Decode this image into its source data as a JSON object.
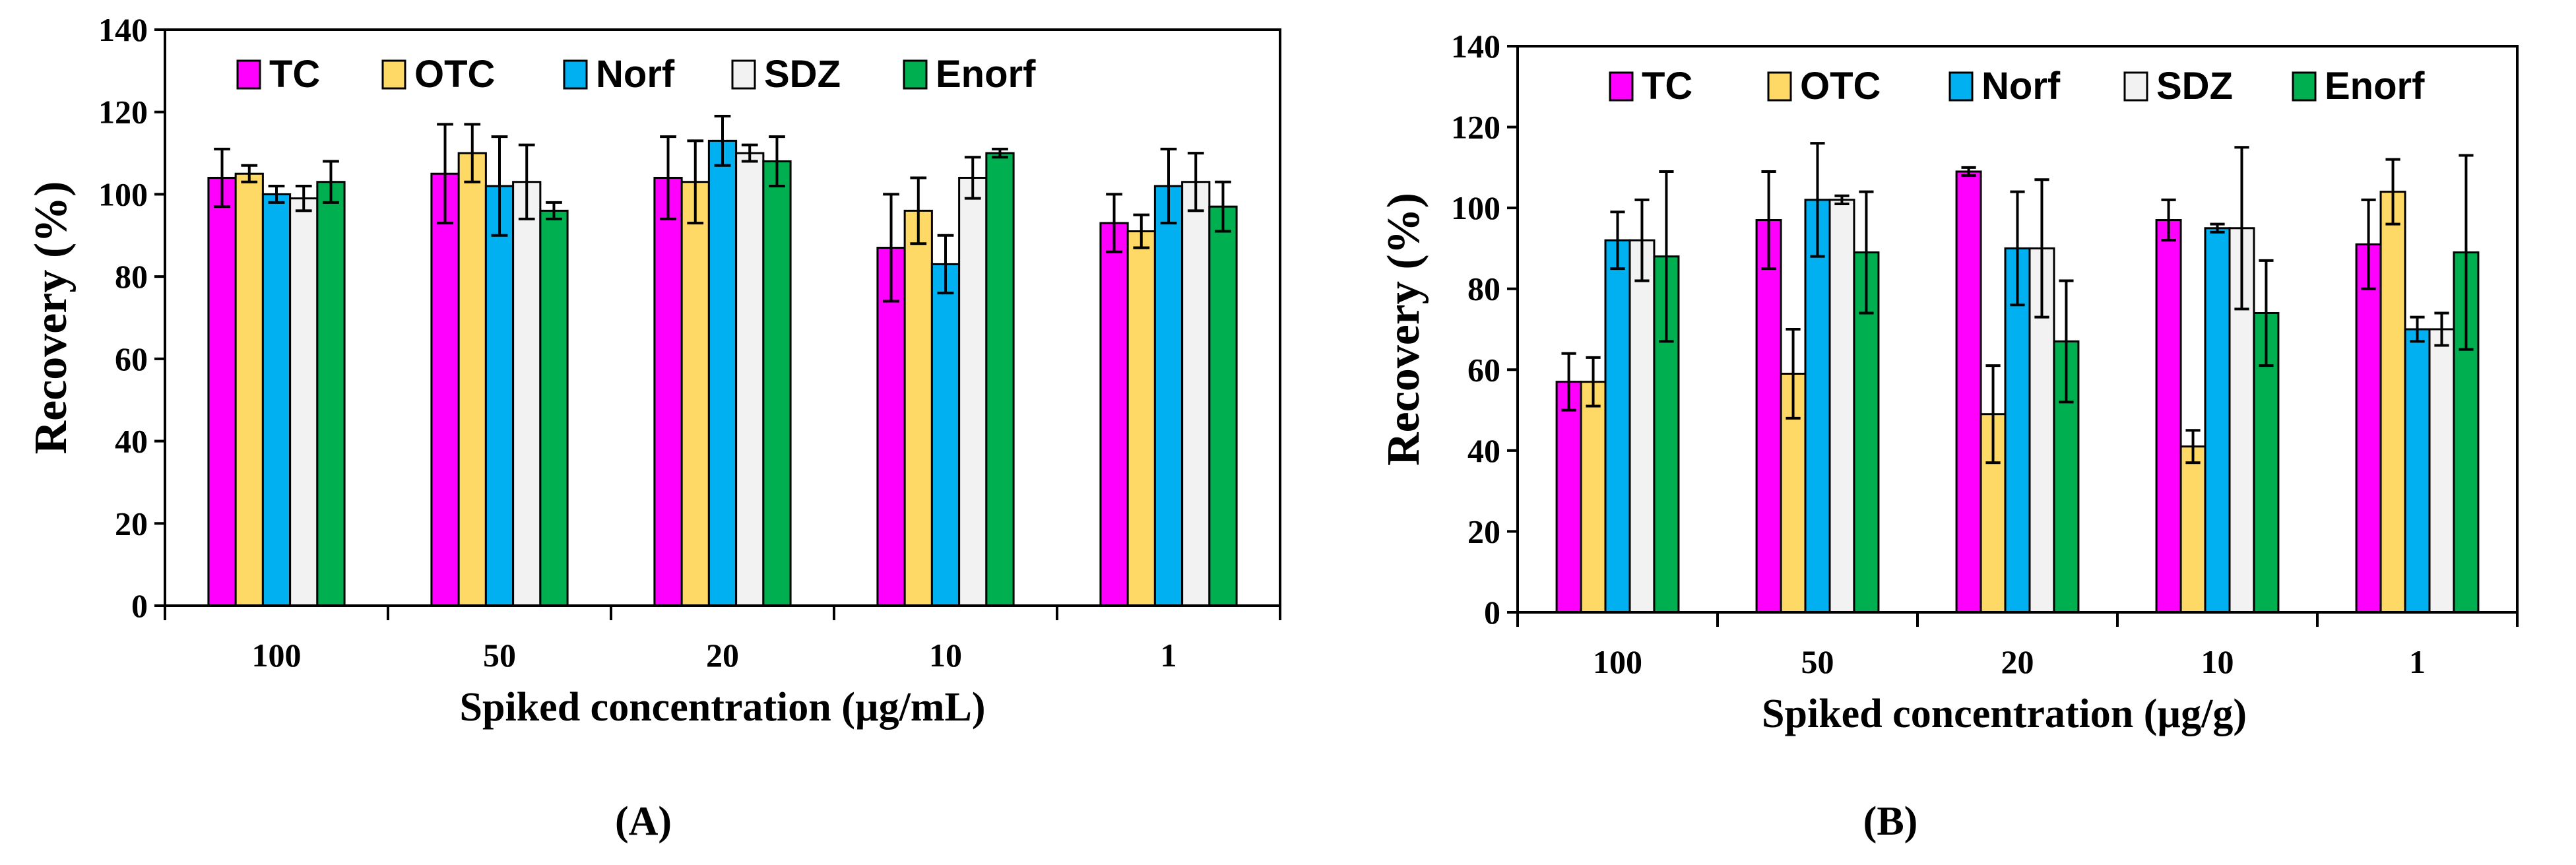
{
  "chart_data": [
    {
      "type": "bar",
      "panel_label": "(A)",
      "categories": [
        "100",
        "50",
        "20",
        "10",
        "1"
      ],
      "xlabel": "Spiked concentration (µg/mL)",
      "ylabel": "Recovery (%)",
      "ylim": [
        0,
        140
      ],
      "yticks": [
        "0",
        "20",
        "40",
        "60",
        "80",
        "100",
        "120",
        "140"
      ],
      "legend_position": "top",
      "series": [
        {
          "name": "TC",
          "color": "#ff00ff",
          "values": [
            104,
            105,
            104,
            87,
            93
          ],
          "errors": [
            7,
            12,
            10,
            13,
            7
          ]
        },
        {
          "name": "OTC",
          "color": "#ffd966",
          "values": [
            105,
            110,
            103,
            96,
            91
          ],
          "errors": [
            2,
            7,
            10,
            8,
            4
          ]
        },
        {
          "name": "Norf",
          "color": "#00b0f0",
          "values": [
            100,
            102,
            113,
            83,
            102
          ],
          "errors": [
            2,
            12,
            6,
            7,
            9
          ]
        },
        {
          "name": "SDZ",
          "color": "#f2f2f2",
          "values": [
            99,
            103,
            110,
            104,
            103
          ],
          "errors": [
            3,
            9,
            2,
            5,
            7
          ]
        },
        {
          "name": "Enorf",
          "color": "#00b050",
          "values": [
            103,
            96,
            108,
            110,
            97
          ],
          "errors": [
            5,
            2,
            6,
            1,
            6
          ]
        }
      ]
    },
    {
      "type": "bar",
      "panel_label": "(B)",
      "categories": [
        "100",
        "50",
        "20",
        "10",
        "1"
      ],
      "xlabel": "Spiked concentration (µg/g)",
      "ylabel": "Recovery (%)",
      "ylim": [
        0,
        140
      ],
      "yticks": [
        "0",
        "20",
        "40",
        "60",
        "80",
        "100",
        "120",
        "140"
      ],
      "legend_position": "top",
      "series": [
        {
          "name": "TC",
          "color": "#ff00ff",
          "values": [
            57,
            97,
            109,
            97,
            91
          ],
          "errors": [
            7,
            12,
            1,
            5,
            11
          ]
        },
        {
          "name": "OTC",
          "color": "#ffd966",
          "values": [
            57,
            59,
            49,
            41,
            104
          ],
          "errors": [
            6,
            11,
            12,
            4,
            8
          ]
        },
        {
          "name": "Norf",
          "color": "#00b0f0",
          "values": [
            92,
            102,
            90,
            95,
            70
          ],
          "errors": [
            7,
            14,
            14,
            1,
            3
          ]
        },
        {
          "name": "SDZ",
          "color": "#f2f2f2",
          "values": [
            92,
            102,
            90,
            95,
            70
          ],
          "errors": [
            10,
            1,
            17,
            20,
            4
          ]
        },
        {
          "name": "Enorf",
          "color": "#00b050",
          "values": [
            88,
            89,
            67,
            74,
            89
          ],
          "errors": [
            21,
            15,
            15,
            13,
            24
          ]
        }
      ]
    }
  ]
}
